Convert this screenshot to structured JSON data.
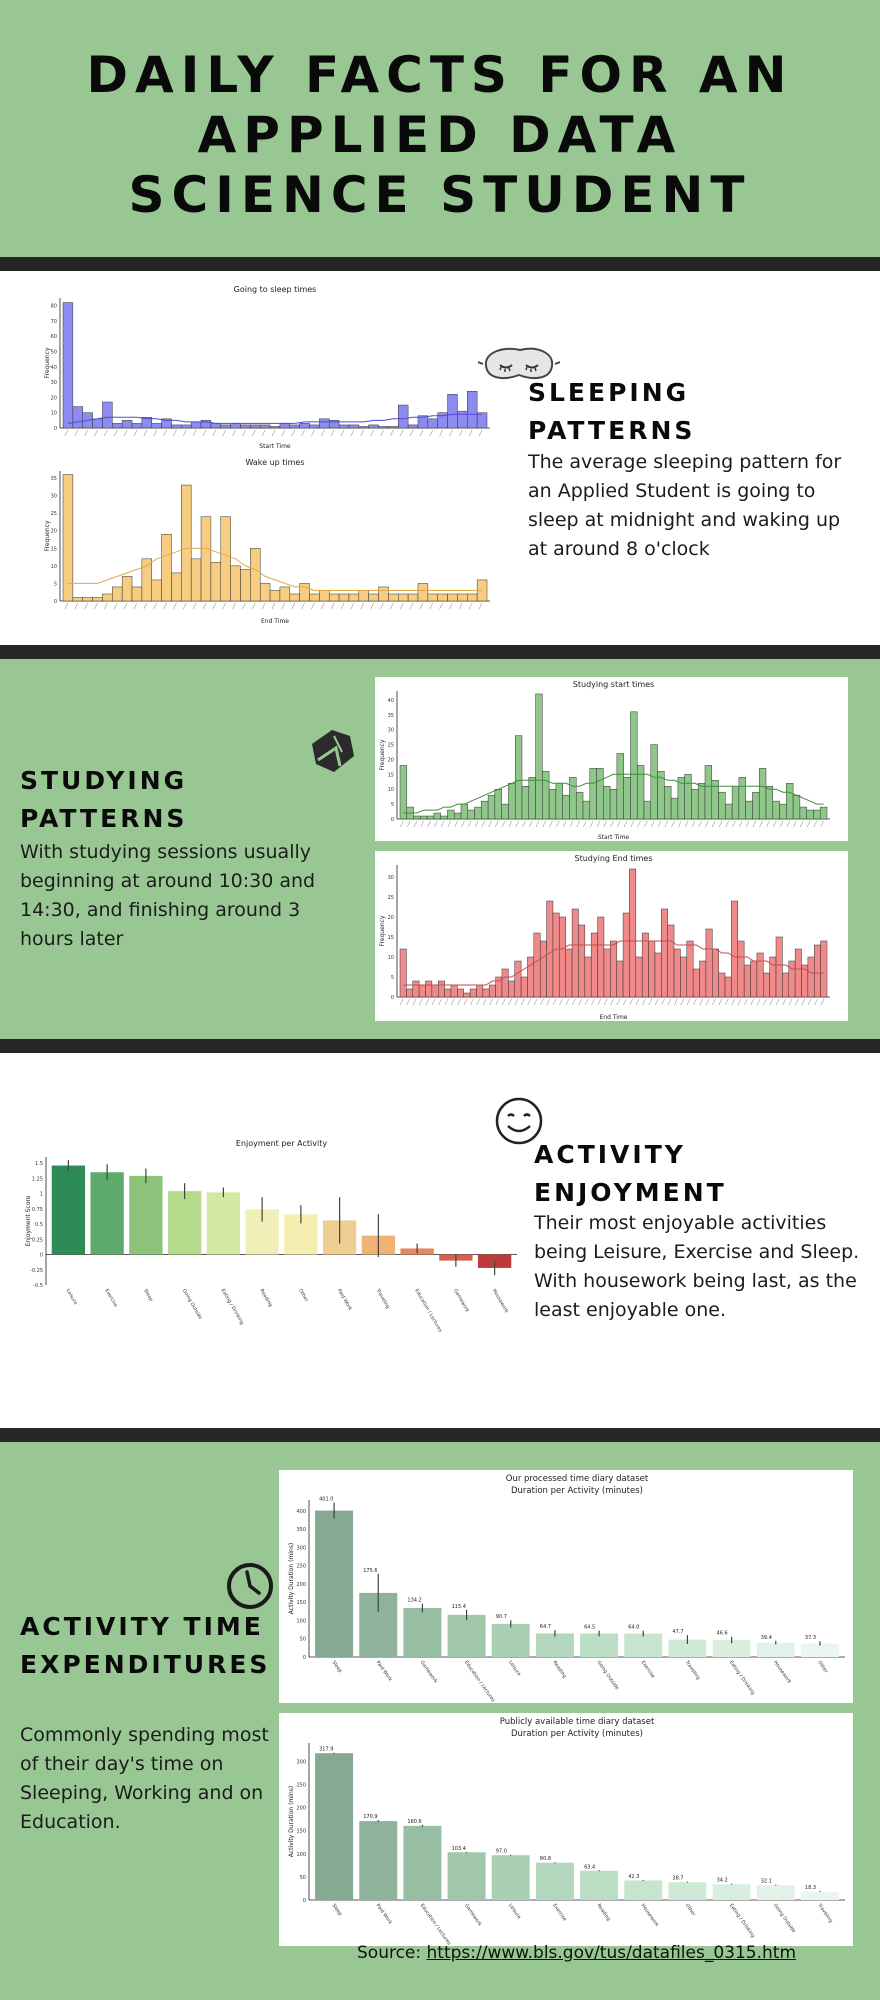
{
  "title": "DAILY FACTS FOR AN APPLIED DATA SCIENCE STUDENT",
  "icons": {
    "sleep": "sleep-mask-icon",
    "study": "book-icon",
    "enjoy": "smiley-icon",
    "time": "clock-icon"
  },
  "colors": {
    "green": "#98c794",
    "dark": "#262626",
    "sleep_blue": "#8c8cf0",
    "wake_orange": "#f7cd82",
    "study_green": "#8fc78a",
    "study_red": "#f08a8a"
  },
  "sections": {
    "sleep": {
      "title": "SLEEPING PATTERNS",
      "text": "The average sleeping pattern for an Applied Student is going to sleep at midnight and waking up at around 8 o'clock"
    },
    "study": {
      "title": "STUDYING PATTERNS",
      "text": "With studying sessions usually beginning at around 10:30 and 14:30, and finishing around 3 hours later"
    },
    "enjoy": {
      "title": "ACTIVITY ENJOYMENT",
      "text": "Their most enjoyable activities being Leisure, Exercise and Sleep. With housework being last, as the least enjoyable one."
    },
    "time": {
      "title_line1": "ACTIVITY TIME",
      "title_line2": "EXPENDITURES",
      "text": "Commonly spending most of their day's time on Sleeping, Working and on Education."
    }
  },
  "source": {
    "label": "Source: ",
    "link": "https://www.bls.gov/tus/datafiles_0315.htm"
  },
  "chart_data": [
    {
      "id": "sleep",
      "type": "bar",
      "title": "Going to sleep times",
      "xlabel": "Start Time",
      "ylabel": "Frequency",
      "ylim": [
        0,
        85
      ],
      "yticks": [
        0,
        10,
        20,
        30,
        40,
        50,
        60,
        70,
        80
      ],
      "values": [
        82,
        14,
        10,
        6,
        17,
        3,
        5,
        3,
        7,
        3,
        6,
        2,
        2,
        4,
        5,
        3,
        2,
        3,
        2,
        2,
        2,
        1,
        3,
        2,
        3,
        2,
        6,
        5,
        2,
        2,
        1,
        2,
        1,
        1,
        15,
        2,
        8,
        6,
        10,
        22,
        11,
        24,
        10
      ],
      "curve": [
        3,
        4,
        5,
        6,
        7,
        7,
        7,
        7,
        6,
        6,
        5,
        5,
        4,
        4,
        4,
        3,
        3,
        3,
        3,
        3,
        3,
        3,
        3,
        3,
        4,
        4,
        4,
        4,
        4,
        4,
        4,
        5,
        5,
        6,
        6,
        7,
        7,
        8,
        8,
        9,
        9,
        9,
        9
      ]
    },
    {
      "id": "wake",
      "type": "bar",
      "title": "Wake up times",
      "xlabel": "End Time",
      "ylabel": "Frequency",
      "ylim": [
        0,
        37
      ],
      "yticks": [
        0,
        5,
        10,
        15,
        20,
        25,
        30,
        35
      ],
      "values": [
        36,
        1,
        1,
        1,
        2,
        4,
        7,
        4,
        12,
        6,
        19,
        8,
        33,
        12,
        24,
        11,
        24,
        10,
        9,
        15,
        5,
        3,
        4,
        2,
        5,
        2,
        3,
        2,
        2,
        2,
        3,
        2,
        4,
        2,
        2,
        2,
        5,
        2,
        2,
        2,
        2,
        2,
        6
      ],
      "curve": [
        5,
        5,
        5,
        5,
        6,
        7,
        8,
        9,
        10,
        12,
        13,
        14,
        15,
        15,
        15,
        14,
        13,
        12,
        10,
        9,
        7,
        6,
        5,
        4,
        4,
        3,
        3,
        3,
        3,
        3,
        3,
        3,
        3,
        3,
        3,
        3,
        3,
        3,
        3,
        3,
        3,
        3,
        3
      ]
    },
    {
      "id": "studystart",
      "type": "bar",
      "title": "Studying start times",
      "xlabel": "Start Time",
      "ylabel": "Frequency",
      "ylim": [
        0,
        43
      ],
      "yticks": [
        0,
        5,
        10,
        15,
        20,
        25,
        30,
        35,
        40
      ],
      "values": [
        18,
        4,
        1,
        1,
        1,
        2,
        1,
        3,
        2,
        5,
        3,
        4,
        6,
        8,
        10,
        5,
        12,
        28,
        11,
        14,
        42,
        16,
        10,
        12,
        8,
        14,
        9,
        6,
        17,
        17,
        11,
        10,
        22,
        14,
        36,
        18,
        6,
        25,
        16,
        11,
        7,
        14,
        15,
        10,
        12,
        18,
        13,
        9,
        5,
        11,
        14,
        6,
        9,
        17,
        11,
        6,
        5,
        12,
        8,
        4,
        3,
        3,
        4
      ],
      "curve": [
        2,
        2,
        2,
        3,
        3,
        3,
        4,
        4,
        5,
        5,
        6,
        7,
        8,
        9,
        10,
        11,
        12,
        13,
        13,
        13,
        13,
        13,
        12,
        12,
        12,
        11,
        11,
        12,
        12,
        13,
        14,
        15,
        15,
        15,
        15,
        15,
        15,
        14,
        14,
        13,
        13,
        12,
        12,
        12,
        11,
        11,
        11,
        11,
        11,
        11,
        11,
        11,
        11,
        11,
        10,
        10,
        9,
        9,
        8,
        7,
        6,
        5,
        5
      ]
    },
    {
      "id": "studyend",
      "type": "bar",
      "title": "Studying End times",
      "xlabel": "End Time",
      "ylabel": "Frequency",
      "ylim": [
        0,
        33
      ],
      "yticks": [
        0,
        5,
        10,
        15,
        20,
        25,
        30
      ],
      "values": [
        12,
        2,
        4,
        3,
        4,
        3,
        4,
        2,
        3,
        2,
        1,
        2,
        3,
        2,
        3,
        5,
        7,
        4,
        9,
        5,
        10,
        16,
        14,
        24,
        21,
        20,
        12,
        22,
        18,
        10,
        16,
        20,
        12,
        14,
        9,
        21,
        32,
        10,
        16,
        14,
        11,
        22,
        18,
        12,
        10,
        14,
        7,
        9,
        17,
        12,
        6,
        5,
        24,
        14,
        8,
        9,
        11,
        6,
        10,
        15,
        6,
        9,
        12,
        8,
        10,
        13,
        14
      ],
      "curve": [
        3,
        3,
        3,
        3,
        3,
        3,
        3,
        3,
        3,
        3,
        3,
        3,
        3,
        3,
        4,
        4,
        5,
        5,
        6,
        7,
        8,
        9,
        10,
        11,
        12,
        12,
        13,
        13,
        13,
        13,
        13,
        13,
        13,
        13,
        14,
        14,
        14,
        14,
        14,
        14,
        14,
        14,
        14,
        13,
        13,
        13,
        13,
        12,
        12,
        12,
        11,
        11,
        10,
        10,
        10,
        9,
        9,
        9,
        8,
        8,
        8,
        7,
        7,
        7,
        6,
        6,
        6
      ]
    },
    {
      "id": "enjoy",
      "type": "bar",
      "title": "Enjoyment per Activity",
      "ylabel": "Enjoyment Score",
      "ylim": [
        -0.5,
        1.6
      ],
      "yticks": [
        -0.5,
        -0.25,
        0,
        0.25,
        0.5,
        0.75,
        1.0,
        1.25,
        1.5
      ],
      "categories": [
        "Leisure",
        "Exercise",
        "Sleep",
        "Going Outside",
        "Eating / Drinking",
        "Reading",
        "Other",
        "Paid Work",
        "Traveling",
        "Education / Lectures",
        "Gamework",
        "Housework"
      ],
      "values": [
        1.46,
        1.35,
        1.29,
        1.04,
        1.02,
        0.74,
        0.66,
        0.56,
        0.31,
        0.1,
        -0.1,
        -0.22
      ],
      "errors": [
        0.09,
        0.13,
        0.12,
        0.13,
        0.08,
        0.2,
        0.15,
        0.38,
        0.35,
        0.08,
        0.1,
        0.12
      ],
      "colors": [
        "#2e8b57",
        "#5daa6a",
        "#8bc47a",
        "#b6da8c",
        "#d4e8a2",
        "#f0efb8",
        "#f6edb0",
        "#efcf91",
        "#eeb374",
        "#e7865f",
        "#d65f50",
        "#be3b3b"
      ]
    },
    {
      "id": "dur1",
      "type": "bar",
      "title": "Our processed time diary dataset",
      "subtitle": "Duration per Activity (minutes)",
      "ylabel": "Activity Duration (mins)",
      "ylim": [
        0,
        430
      ],
      "yticks": [
        0,
        50,
        100,
        150,
        200,
        250,
        300,
        350,
        400
      ],
      "categories": [
        "Sleep",
        "Paid Work",
        "Gamework",
        "Education / Lectures",
        "Leisure",
        "Reading",
        "Going Outside",
        "Exercise",
        "Traveling",
        "Eating / Drinking",
        "Housework",
        "Other"
      ],
      "values": [
        401.0,
        175.6,
        134.2,
        115.4,
        90.7,
        64.7,
        64.5,
        64.0,
        47.7,
        46.6,
        39.4,
        37.3
      ],
      "labels": [
        "401.0",
        "175.6",
        "134.2",
        "115.4",
        "90.7",
        "64.7",
        "64.5",
        "64.0",
        "47.7",
        "46.6",
        "39.4",
        "37.3"
      ],
      "errors": [
        22,
        52,
        12,
        14,
        10,
        9,
        8,
        8,
        12,
        9,
        5,
        6
      ],
      "colors": [
        "#86a992",
        "#8fb39a",
        "#97bda2",
        "#a0c7aa",
        "#a9d0b3",
        "#b3d7bc",
        "#bcdec5",
        "#c6e4ce",
        "#d0e9d7",
        "#daeee0",
        "#e3f2e8",
        "#ecf6f0"
      ]
    },
    {
      "id": "dur2",
      "type": "bar",
      "title": "Publicly available time diary dataset",
      "subtitle": "Duration per Activity (minutes)",
      "ylabel": "Activity Duration (mins)",
      "ylim": [
        0,
        340
      ],
      "yticks": [
        0,
        50,
        100,
        150,
        200,
        250,
        300
      ],
      "categories": [
        "Sleep",
        "Paid Work",
        "Education / Lectures",
        "Gamework",
        "Leisure",
        "Exercise",
        "Reading",
        "Housework",
        "Other",
        "Eating / Drinking",
        "Going Outside",
        "Traveling"
      ],
      "values": [
        317.9,
        170.9,
        160.6,
        103.4,
        97.0,
        80.8,
        63.4,
        42.3,
        38.7,
        34.2,
        32.1,
        18.3
      ],
      "labels": [
        "317.9",
        "170.9",
        "160.6",
        "103.4",
        "97.0",
        "80.8",
        "63.4",
        "42.3",
        "38.7",
        "34.2",
        "32.1",
        "18.3"
      ],
      "errors": [
        1,
        2,
        2,
        1,
        1,
        1,
        1,
        1,
        1,
        1,
        1,
        1
      ],
      "colors": [
        "#86a992",
        "#8fb39a",
        "#97bda2",
        "#a0c7aa",
        "#a9d0b3",
        "#b3d7bc",
        "#bcdec5",
        "#c6e4ce",
        "#d0e9d7",
        "#daeee0",
        "#e3f2e8",
        "#ecf6f0"
      ]
    }
  ]
}
